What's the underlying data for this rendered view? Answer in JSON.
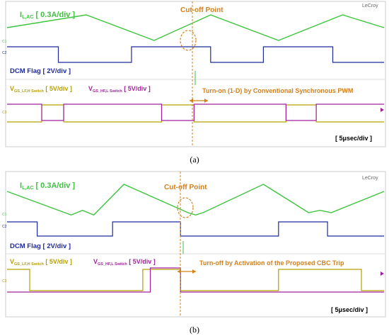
{
  "panels": [
    {
      "caption": "(a)",
      "brand": "LeCroy",
      "cutoff_label": "Cut-off Point",
      "iac_label": "I",
      "iac_sub": "L,AC",
      "iac_scale": "[ 0.3A/div ]",
      "dcm_label": "DCM Flag [ 2V/div ]",
      "vlf_label": "V",
      "vlf_sub": "GS_LF,H Switch",
      "vlf_scale": "[ 5V/div ]",
      "vhf_label": "V",
      "vhf_sub": "GS_HF,L Switch",
      "vhf_scale": "[ 5V/div ]",
      "annotation": "Turn-on (1-D) by Conventional Synchronous PWM",
      "timebase": "[ 5μsec/div ]"
    },
    {
      "caption": "(b)",
      "brand": "LeCroy",
      "cutoff_label": "Cut-off Point",
      "iac_label": "I",
      "iac_sub": "L,AC",
      "iac_scale": "[ 0.3A/div ]",
      "dcm_label": "DCM Flag [ 2V/div ]",
      "vlf_label": "V",
      "vlf_sub": "GS_LF,H Switch",
      "vlf_scale": "[ 5V/div ]",
      "vhf_label": "V",
      "vhf_sub": "GS_HF,L Switch",
      "vhf_scale": "[ 5V/div ]",
      "annotation": "Turn-off by Activation of the Proposed CBC Trip",
      "timebase": "[ 5μsec/div ]"
    }
  ],
  "colors": {
    "current": "#3ec43e",
    "dcm": "#1f2a9e",
    "lf": "#b8a000",
    "hf": "#a0239a",
    "annotation": "#d4801a",
    "screen_border": "#cccccc"
  },
  "chart_data": [
    {
      "type": "line",
      "x_unit": "µs",
      "x_range": [
        0,
        50
      ],
      "series": [
        {
          "name": "I L,AC",
          "x": [
            0,
            10.5,
            19.5,
            27.0,
            36.0,
            44.5,
            50
          ],
          "y": [
            0.45,
            0.75,
            0.15,
            0.75,
            0.15,
            0.75,
            0.45
          ]
        },
        {
          "name": "DCM Flag",
          "x": [
            0,
            6.8,
            6.8,
            16.5,
            16.5,
            27.0,
            27.0,
            34.0,
            34.0,
            43.2,
            43.2,
            50
          ],
          "y": [
            1,
            1,
            0,
            0,
            1,
            1,
            0,
            0,
            1,
            1,
            0,
            0
          ]
        },
        {
          "name": "V GS_LF,H Switch",
          "x": [
            0,
            4.6,
            4.6,
            7.5,
            7.5,
            20.5,
            20.5,
            24.8,
            24.8,
            37.0,
            37.0,
            41.0,
            41.0,
            50
          ],
          "y": [
            0,
            0,
            1,
            1,
            0,
            0,
            1,
            1,
            0,
            0,
            1,
            1,
            0,
            0
          ]
        },
        {
          "name": "V GS_HF,L Switch",
          "x": [
            0,
            4.6,
            4.6,
            7.5,
            7.5,
            20.5,
            20.5,
            24.8,
            24.8,
            37.0,
            37.0,
            41.0,
            41.0,
            50
          ],
          "y": [
            1,
            1,
            0,
            0,
            1,
            1,
            0,
            0,
            1,
            1,
            0,
            0,
            1,
            1
          ]
        }
      ]
    },
    {
      "type": "line",
      "x_unit": "µs",
      "x_range": [
        0,
        50
      ],
      "series": [
        {
          "name": "I L,AC",
          "x": [
            0,
            8.5,
            10.0,
            11.5,
            15.5,
            24.0,
            25.0,
            26.0,
            34.0,
            40.0,
            41.5,
            43.0,
            50
          ],
          "y": [
            0.6,
            0.1,
            0.2,
            0.1,
            0.75,
            0.15,
            0.1,
            0.15,
            0.75,
            0.15,
            0.2,
            0.15,
            0.6
          ]
        },
        {
          "name": "DCM Flag",
          "x": [
            0,
            4.0,
            4.0,
            14.0,
            14.0,
            23.0,
            23.0,
            36.0,
            36.0,
            42.5,
            42.5,
            50
          ],
          "y": [
            1,
            1,
            0,
            0,
            1,
            1,
            0,
            0,
            1,
            1,
            0,
            0
          ]
        },
        {
          "name": "V GS_LF,H Switch",
          "x": [
            0,
            3.0,
            3.0,
            18.0,
            18.0,
            23.0,
            23.0,
            36.0,
            36.0,
            47.0,
            47.0,
            50
          ],
          "y": [
            1,
            1,
            0,
            0,
            1,
            1,
            0,
            0,
            1,
            1,
            0,
            0
          ]
        },
        {
          "name": "V GS_HF,L Switch",
          "x": [
            0,
            19.0,
            19.0,
            23.0,
            23.0,
            50
          ],
          "y": [
            0,
            0,
            1,
            1,
            0,
            0
          ]
        }
      ]
    }
  ]
}
